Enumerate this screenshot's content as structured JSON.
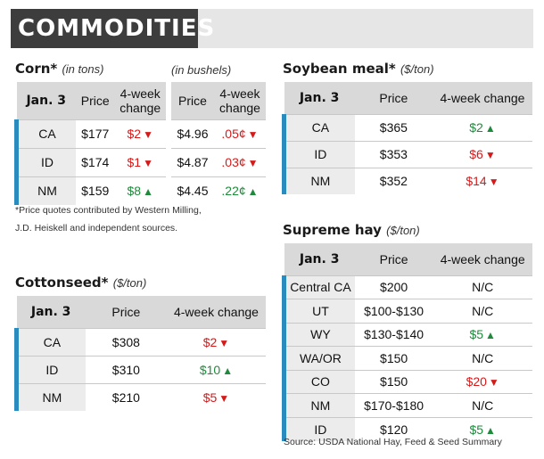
{
  "banner": {
    "title": "COMMODITIES"
  },
  "colors": {
    "up": "#1f8a3b",
    "down": "#d61a1a",
    "accent": "#2a8bbf"
  },
  "corn": {
    "title": "Corn*",
    "unit_tons": "(in tons)",
    "unit_bushels": "(in bushels)",
    "headers": {
      "date": "Jan. 3",
      "price": "Price",
      "change": "4-week change"
    },
    "rows": [
      {
        "label": "CA",
        "price_ton": "$177",
        "change_ton": "$2",
        "dir_ton": "down",
        "price_bu": "$4.96",
        "change_bu": ".05¢",
        "dir_bu": "down"
      },
      {
        "label": "ID",
        "price_ton": "$174",
        "change_ton": "$1",
        "dir_ton": "down",
        "price_bu": "$4.87",
        "change_bu": ".03¢",
        "dir_bu": "down"
      },
      {
        "label": "NM",
        "price_ton": "$159",
        "change_ton": "$8",
        "dir_ton": "up",
        "price_bu": "$4.45",
        "change_bu": ".22¢",
        "dir_bu": "up"
      }
    ]
  },
  "note": {
    "line1": "*Price quotes contributed by Western Milling,",
    "line2": "J.D. Heiskell and independent sources."
  },
  "cottonseed": {
    "title": "Cottonseed*",
    "unit": "($/ton)",
    "headers": {
      "date": "Jan. 3",
      "price": "Price",
      "change": "4-week change"
    },
    "rows": [
      {
        "label": "CA",
        "price": "$308",
        "change": "$2",
        "dir": "down"
      },
      {
        "label": "ID",
        "price": "$310",
        "change": "$10",
        "dir": "up"
      },
      {
        "label": "NM",
        "price": "$210",
        "change": "$5",
        "dir": "down"
      }
    ]
  },
  "soybean": {
    "title": "Soybean meal*",
    "unit": "($/ton)",
    "headers": {
      "date": "Jan. 3",
      "price": "Price",
      "change": "4-week change"
    },
    "rows": [
      {
        "label": "CA",
        "price": "$365",
        "change": "$2",
        "dir": "up"
      },
      {
        "label": "ID",
        "price": "$353",
        "change": "$6",
        "dir": "down"
      },
      {
        "label": "NM",
        "price": "$352",
        "change": "$14",
        "dir": "down"
      }
    ]
  },
  "hay": {
    "title": "Supreme hay",
    "unit": "($/ton)",
    "headers": {
      "date": "Jan. 3",
      "price": "Price",
      "change": "4-week change"
    },
    "rows": [
      {
        "label": "Central CA",
        "price": "$200",
        "change": "N/C",
        "dir": "none"
      },
      {
        "label": "UT",
        "price": "$100-$130",
        "change": "N/C",
        "dir": "none"
      },
      {
        "label": "WY",
        "price": "$130-$140",
        "change": "$5",
        "dir": "up"
      },
      {
        "label": "WA/OR",
        "price": "$150",
        "change": "N/C",
        "dir": "none"
      },
      {
        "label": "CO",
        "price": "$150",
        "change": "$20",
        "dir": "down"
      },
      {
        "label": "NM",
        "price": "$170-$180",
        "change": "N/C",
        "dir": "none"
      },
      {
        "label": "ID",
        "price": "$120",
        "change": "$5",
        "dir": "up"
      }
    ],
    "source": "Source: USDA National Hay, Feed & Seed Summary"
  }
}
